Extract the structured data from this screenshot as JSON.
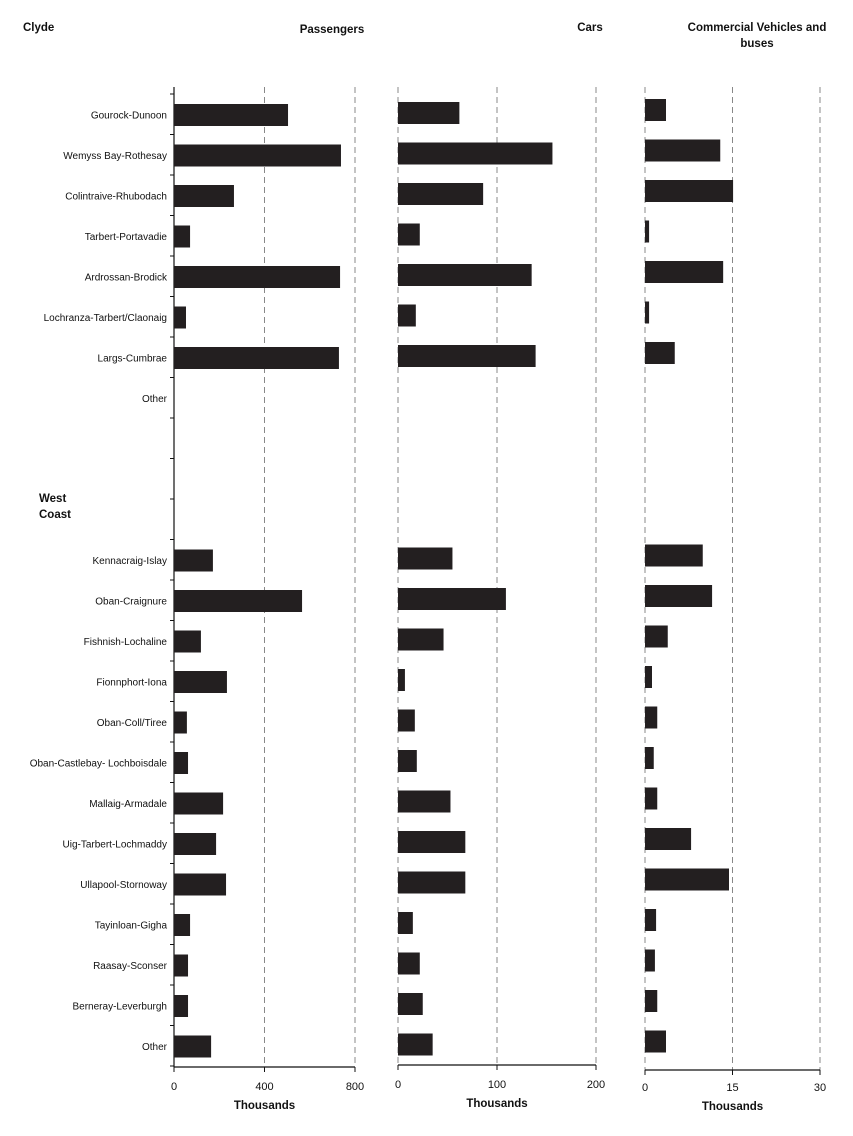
{
  "chart_data": {
    "type": "bar",
    "orientation": "horizontal",
    "sections": [
      {
        "label": "Clyde"
      },
      {
        "label": "West Coast"
      }
    ],
    "categories": [
      "Gourock-Dunoon",
      "Wemyss Bay-Rothesay",
      "Colintraive-Rhubodach",
      "Tarbert-Portavadie",
      "Ardrossan-Brodick",
      "Lochranza-Tarbert/Claonaig",
      "Largs-Cumbrae",
      "Other",
      "",
      "",
      "",
      "Kennacraig-Islay",
      "Oban-Craignure",
      "Fishnish-Lochaline",
      "Fionnphort-Iona",
      "Oban-Coll/Tiree",
      "Oban-Castlebay- Lochboisdale",
      "Mallaig-Armadale",
      "Uig-Tarbert-Lochmaddy",
      "Ullapool-Stornoway",
      "Tayinloan-Gigha",
      "Raasay-Sconser",
      "Berneray-Leverburgh",
      "Other"
    ],
    "series": [
      {
        "name": "Passengers",
        "title": "Passengers",
        "xlabel": "Thousands",
        "xlim": [
          0,
          800
        ],
        "ticks": [
          "0",
          "400",
          "800"
        ],
        "values": [
          504,
          738,
          265,
          71,
          734,
          53,
          729,
          null,
          null,
          null,
          null,
          172,
          566,
          119,
          234,
          57,
          62,
          217,
          186,
          230,
          71,
          62,
          62,
          164
        ]
      },
      {
        "name": "Cars",
        "title": "Cars",
        "xlabel": "Thousands",
        "xlim": [
          0,
          200
        ],
        "ticks": [
          "0",
          "100",
          "200"
        ],
        "values": [
          62,
          156,
          86,
          22,
          135,
          18,
          139,
          null,
          null,
          null,
          null,
          55,
          109,
          46,
          7,
          17,
          19,
          53,
          68,
          68,
          15,
          22,
          25,
          35
        ]
      },
      {
        "name": "Commercial Vehicles and buses",
        "title": [
          "Commercial Vehicles and",
          "buses"
        ],
        "xlabel": "Thousands",
        "xlim": [
          0,
          30
        ],
        "ticks": [
          "0",
          "15",
          "30"
        ],
        "values": [
          3.6,
          12.9,
          15.1,
          0.7,
          13.4,
          0.7,
          5.1,
          null,
          null,
          null,
          null,
          9.9,
          11.5,
          3.9,
          1.2,
          2.1,
          1.5,
          2.1,
          7.9,
          14.4,
          1.9,
          1.7,
          2.1,
          3.6
        ]
      }
    ],
    "grid": "dashed vertical",
    "colors": {
      "bar": "#231f20",
      "grid": "#888888",
      "axis": "#111111"
    }
  }
}
